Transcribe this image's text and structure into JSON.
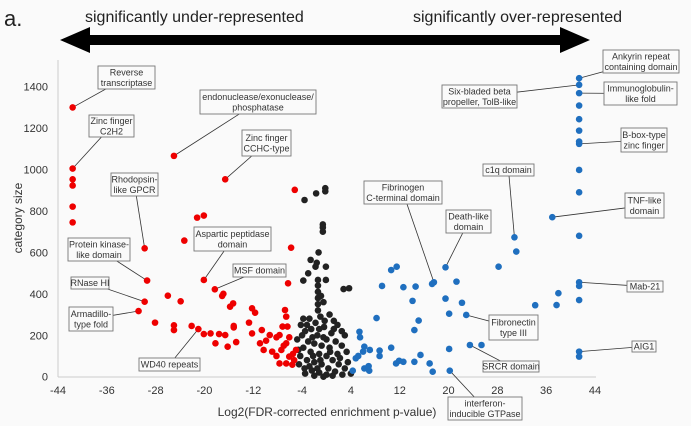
{
  "panel_label": "a.",
  "headings": {
    "left": "significantly under-represented",
    "right": "significantly over-represented"
  },
  "chart_data": {
    "type": "scatter",
    "title": "",
    "xlabel": "Log2(FDR-corrected enrichment p-value)",
    "ylabel": "category size",
    "xlim": [
      -44,
      44
    ],
    "ylim": [
      0,
      1500
    ],
    "xticks": [
      "-44",
      "-36",
      "-28",
      "-20",
      "-12",
      "-4",
      "4",
      "12",
      "20",
      "28",
      "36",
      "44"
    ],
    "yticks": [
      "0",
      "200",
      "400",
      "600",
      "800",
      "1000",
      "1200",
      "1400"
    ],
    "grid": false,
    "colors": {
      "under": "#ee0000",
      "not_significant": "#222222",
      "over": "#1f6fbf"
    },
    "series": [
      {
        "group": "under",
        "points": [
          [
            -41.6,
            1300
          ],
          [
            -41.6,
            1005
          ],
          [
            -41.6,
            953
          ],
          [
            -41.6,
            923
          ],
          [
            -41.6,
            821
          ],
          [
            -41.6,
            745
          ],
          [
            -25.0,
            1066
          ],
          [
            -16.6,
            953
          ],
          [
            -29.8,
            620
          ],
          [
            -29.4,
            464
          ],
          [
            -29.8,
            362
          ],
          [
            -30.8,
            317
          ],
          [
            -20.1,
            467
          ],
          [
            -18.3,
            422
          ],
          [
            -21.0,
            230
          ],
          [
            -5.2,
            902
          ],
          [
            -21.2,
            768
          ],
          [
            -20.1,
            778
          ],
          [
            -23.3,
            657
          ],
          [
            -5.8,
            623
          ],
          [
            -6.3,
            451
          ],
          [
            -26.0,
            391
          ],
          [
            -23.9,
            364
          ],
          [
            -28.1,
            261
          ],
          [
            -25.0,
            248
          ],
          [
            -25.0,
            225
          ],
          [
            -22.1,
            245
          ],
          [
            -17.1,
            390
          ],
          [
            -16.9,
            400
          ],
          [
            -15.8,
            338
          ],
          [
            -15.3,
            354
          ],
          [
            -15.2,
            245
          ],
          [
            -15.2,
            238
          ],
          [
            -20.1,
            206
          ],
          [
            -19.0,
            209
          ],
          [
            -17.6,
            206
          ],
          [
            -16.6,
            201
          ],
          [
            -18.2,
            161
          ],
          [
            -16.2,
            145
          ],
          [
            -14.8,
            167
          ],
          [
            -12.2,
            330
          ],
          [
            -11.7,
            309
          ],
          [
            -12.7,
            261
          ],
          [
            -12.2,
            209
          ],
          [
            -10.6,
            225
          ],
          [
            -10.9,
            161
          ],
          [
            -9.9,
            174
          ],
          [
            -10.3,
            129
          ],
          [
            -9.3,
            201
          ],
          [
            -8.9,
            121
          ],
          [
            -8.2,
            190
          ],
          [
            -7.7,
            201
          ],
          [
            -6.8,
            322
          ],
          [
            -6.6,
            290
          ],
          [
            -7.2,
            242
          ],
          [
            -6.4,
            242
          ],
          [
            -7.4,
            129
          ],
          [
            -7.7,
            64
          ],
          [
            -6.6,
            64
          ],
          [
            -6.1,
            97
          ],
          [
            -5.3,
            80
          ],
          [
            -5.6,
            58
          ],
          [
            -5.0,
            129
          ],
          [
            -6.6,
            161
          ],
          [
            -6.1,
            190
          ],
          [
            -8.2,
            100
          ],
          [
            -7.0,
            150
          ],
          [
            -5.5,
            110
          ]
        ]
      },
      {
        "group": "not_significant",
        "points": [
          [
            -0.2,
            910
          ],
          [
            -0.2,
            895
          ],
          [
            -1.7,
            885
          ],
          [
            -3.6,
            853
          ],
          [
            -0.6,
            735
          ],
          [
            -0.6,
            720
          ],
          [
            -0.6,
            700
          ],
          [
            -1.3,
            600
          ],
          [
            -2.6,
            564
          ],
          [
            -1.6,
            550
          ],
          [
            -1.8,
            531
          ],
          [
            -0.1,
            531
          ],
          [
            -3.0,
            499
          ],
          [
            -3.8,
            464
          ],
          [
            -1.4,
            467
          ],
          [
            -0.1,
            467
          ],
          [
            2.8,
            423
          ],
          [
            3.7,
            427
          ],
          [
            -1.4,
            440
          ],
          [
            -1.4,
            410
          ],
          [
            -1.4,
            380
          ],
          [
            -1.4,
            350
          ],
          [
            -1.4,
            320
          ],
          [
            -0.9,
            390
          ],
          [
            -0.5,
            360
          ],
          [
            0.5,
            300
          ],
          [
            1.2,
            270
          ],
          [
            1.8,
            250
          ],
          [
            2.5,
            220
          ],
          [
            3.0,
            200
          ],
          [
            -3.8,
            280
          ],
          [
            -2.8,
            280
          ],
          [
            -4.2,
            250
          ],
          [
            -1.0,
            290
          ],
          [
            -1.8,
            260
          ],
          [
            -0.4,
            240
          ],
          [
            0.8,
            210
          ],
          [
            -3.5,
            220
          ],
          [
            -2.5,
            230
          ],
          [
            -4.0,
            200
          ],
          [
            -1.5,
            200
          ],
          [
            0.0,
            180
          ],
          [
            1.5,
            170
          ],
          [
            2.5,
            150
          ],
          [
            3.3,
            120
          ],
          [
            -3.0,
            170
          ],
          [
            -2.0,
            160
          ],
          [
            -0.8,
            150
          ],
          [
            0.5,
            140
          ],
          [
            1.8,
            110
          ],
          [
            -3.8,
            140
          ],
          [
            -2.6,
            120
          ],
          [
            -1.2,
            110
          ],
          [
            0.0,
            100
          ],
          [
            1.0,
            80
          ],
          [
            2.0,
            60
          ],
          [
            3.0,
            40
          ],
          [
            4.0,
            15
          ],
          [
            -4.3,
            100
          ],
          [
            -3.2,
            80
          ],
          [
            -2.0,
            70
          ],
          [
            -0.8,
            60
          ],
          [
            0.3,
            40
          ],
          [
            1.4,
            25
          ],
          [
            2.6,
            10
          ],
          [
            -4.5,
            60
          ],
          [
            -3.6,
            40
          ],
          [
            -2.4,
            30
          ],
          [
            -1.2,
            20
          ],
          [
            0.0,
            10
          ],
          [
            -0.5,
            0
          ],
          [
            -2.0,
            5
          ],
          [
            -3.5,
            15
          ],
          [
            1.0,
            5
          ],
          [
            -1.0,
            80
          ],
          [
            -2.2,
            100
          ],
          [
            0.6,
            120
          ],
          [
            -0.5,
            190
          ],
          [
            -2.3,
            190
          ],
          [
            1.2,
            230
          ],
          [
            -3.2,
            250
          ],
          [
            -1.2,
            230
          ],
          [
            -0.3,
            270
          ],
          [
            -4.6,
            130
          ],
          [
            -4.8,
            180
          ],
          [
            2.2,
            90
          ],
          [
            3.5,
            70
          ],
          [
            -1.5,
            40
          ],
          [
            -2.8,
            50
          ]
        ]
      },
      {
        "group": "over",
        "points": [
          [
            41.4,
            1441
          ],
          [
            41.4,
            1409
          ],
          [
            41.4,
            1369
          ],
          [
            41.4,
            1309
          ],
          [
            41.4,
            1243
          ],
          [
            41.4,
            1188
          ],
          [
            41.4,
            1135
          ],
          [
            41.4,
            1124
          ],
          [
            41.4,
            998
          ],
          [
            41.4,
            890
          ],
          [
            41.4,
            680
          ],
          [
            41.4,
            456
          ],
          [
            41.4,
            438
          ],
          [
            41.4,
            370
          ],
          [
            41.4,
            121
          ],
          [
            41.4,
            97
          ],
          [
            37.0,
            770
          ],
          [
            30.8,
            673
          ],
          [
            31.1,
            604
          ],
          [
            28.2,
            531
          ],
          [
            19.5,
            528
          ],
          [
            21.3,
            459
          ],
          [
            17.6,
            456
          ],
          [
            17.3,
            448
          ],
          [
            10.6,
            515
          ],
          [
            11.5,
            531
          ],
          [
            9.1,
            438
          ],
          [
            12.6,
            432
          ],
          [
            14.6,
            435
          ],
          [
            14.1,
            366
          ],
          [
            19.5,
            377
          ],
          [
            22.2,
            357
          ],
          [
            8.2,
            283
          ],
          [
            15.1,
            271
          ],
          [
            14.4,
            225
          ],
          [
            20.1,
            304
          ],
          [
            22.9,
            298
          ],
          [
            34.2,
            345
          ],
          [
            37.7,
            346
          ],
          [
            38.0,
            403
          ],
          [
            23.5,
            153
          ],
          [
            25.4,
            153
          ],
          [
            20.1,
            134
          ],
          [
            20.2,
            29
          ],
          [
            10.6,
            140
          ],
          [
            8.7,
            126
          ],
          [
            8.7,
            100
          ],
          [
            7.1,
            129
          ],
          [
            5.4,
            217
          ],
          [
            5.5,
            190
          ],
          [
            6.2,
            145
          ],
          [
            6.0,
            121
          ],
          [
            4.8,
            89
          ],
          [
            5.2,
            100
          ],
          [
            4.3,
            29
          ],
          [
            6.2,
            40
          ],
          [
            7.0,
            29
          ],
          [
            6.9,
            51
          ],
          [
            11.4,
            64
          ],
          [
            11.9,
            77
          ],
          [
            12.6,
            72
          ],
          [
            14.4,
            72
          ],
          [
            15.4,
            105
          ],
          [
            16.9,
            64
          ],
          [
            17.4,
            24
          ]
        ]
      }
    ],
    "annotations": [
      {
        "text": "Reverse\ntranscriptase",
        "x": -41.6,
        "y": 1300
      },
      {
        "text": "Zinc finger\nC2H2",
        "x": -41.6,
        "y": 1005
      },
      {
        "text": "endonuclease/exonuclease/\nphosphatase",
        "x": -25.0,
        "y": 1066
      },
      {
        "text": "Zinc finger\nCCHC-type",
        "x": -16.6,
        "y": 953
      },
      {
        "text": "Rhodopsin-\nlike GPCR",
        "x": -29.8,
        "y": 620
      },
      {
        "text": "Aspartic peptidase\ndomain",
        "x": -20.1,
        "y": 467
      },
      {
        "text": "Protein kinase-\nlike domain",
        "x": -29.4,
        "y": 464
      },
      {
        "text": "MSF domain",
        "x": -18.3,
        "y": 422
      },
      {
        "text": "RNase HI",
        "x": -29.8,
        "y": 362
      },
      {
        "text": "Armadillo-\ntype fold",
        "x": -30.8,
        "y": 317
      },
      {
        "text": "WD40 repeats",
        "x": -21.0,
        "y": 230
      },
      {
        "text": "Ankyrin repeat\ncontaining domain",
        "x": 41.4,
        "y": 1441
      },
      {
        "text": "Six-bladed beta\npropeller, TolB-like",
        "x": 41.4,
        "y": 1409
      },
      {
        "text": "Immunoglobulin-\nlike fold",
        "x": 41.4,
        "y": 1369
      },
      {
        "text": "B-box-type\nzinc finger",
        "x": 41.4,
        "y": 1124
      },
      {
        "text": "c1q domain",
        "x": 30.8,
        "y": 673
      },
      {
        "text": "Fibrinogen\nC-terminal domain",
        "x": 17.6,
        "y": 456
      },
      {
        "text": "Death-like\ndomain",
        "x": 19.5,
        "y": 528
      },
      {
        "text": "TNF-like\ndomain",
        "x": 37.0,
        "y": 770
      },
      {
        "text": "Mab-21",
        "x": 41.4,
        "y": 456
      },
      {
        "text": "Fibronectin\ntype III",
        "x": 22.9,
        "y": 298
      },
      {
        "text": "AIG1",
        "x": 41.4,
        "y": 121
      },
      {
        "text": "SRCR domain",
        "x": 23.5,
        "y": 153
      },
      {
        "text": "interferon-\ninducible GTPase",
        "x": 20.2,
        "y": 29
      }
    ]
  }
}
